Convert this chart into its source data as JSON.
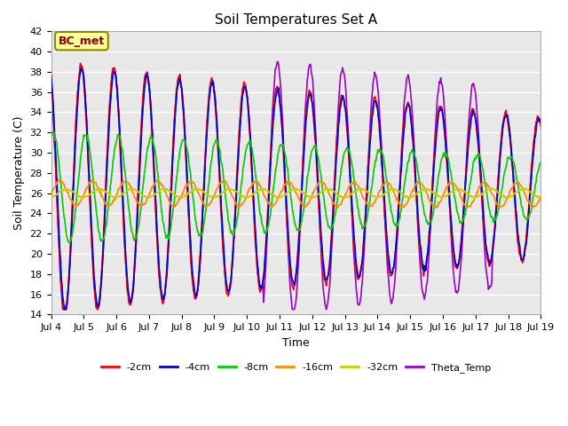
{
  "title": "Soil Temperatures Set A",
  "xlabel": "Time",
  "ylabel": "Soil Temperature (C)",
  "ylim": [
    14,
    42
  ],
  "yticks": [
    14,
    16,
    18,
    20,
    22,
    24,
    26,
    28,
    30,
    32,
    34,
    36,
    38,
    40,
    42
  ],
  "xlim": [
    0,
    15
  ],
  "xtick_labels": [
    "Jul 4",
    "Jul 5",
    "Jul 6",
    "Jul 7",
    "Jul 8",
    "Jul 9",
    "Jul 10",
    "Jul 11",
    "Jul 12",
    "Jul 13",
    "Jul 14",
    "Jul 15",
    "Jul 16",
    "Jul 17",
    "Jul 18",
    "Jul 19"
  ],
  "xtick_positions": [
    0,
    1,
    2,
    3,
    4,
    5,
    6,
    7,
    8,
    9,
    10,
    11,
    12,
    13,
    14,
    15
  ],
  "annotation_text": "BC_met",
  "annotation_color": "#8B0000",
  "annotation_bg": "#FFFF99",
  "bg_color": "#E8E8E8",
  "colors": {
    "2cm": "#FF0000",
    "4cm": "#0000CC",
    "8cm": "#00CC00",
    "16cm": "#FF8C00",
    "32cm": "#CCCC00",
    "Theta": "#9900CC"
  },
  "legend_labels": [
    "-2cm",
    "-4cm",
    "-8cm",
    "-16cm",
    "-32cm",
    "Theta_Temp"
  ],
  "mean_temp": 26.5,
  "mean_32cm": 26.0,
  "mean_16cm": 26.0,
  "amp_surface_start": 12.5,
  "amp_surface_end": 7.0,
  "amp_8cm_start": 5.5,
  "amp_8cm_end": 3.0,
  "amp_16cm": 1.2,
  "amp_32cm": 0.4,
  "n_days": 15,
  "n_per_day": 48
}
